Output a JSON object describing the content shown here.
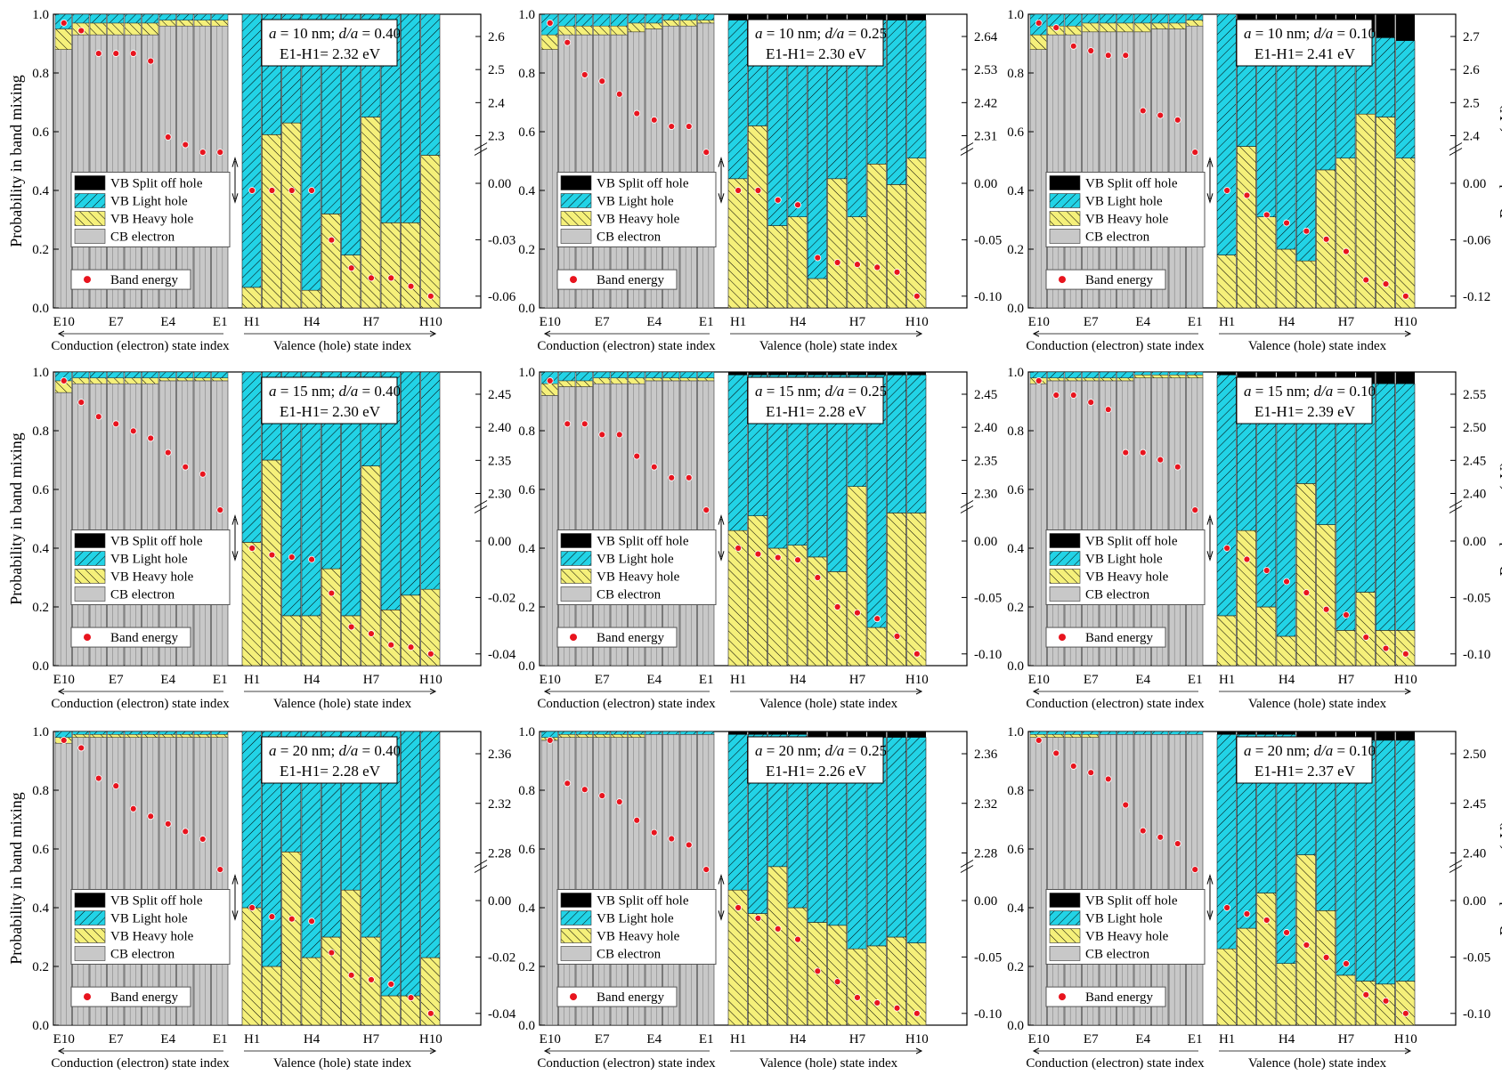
{
  "labels": {
    "ylabel_left": "Probability in band mixing",
    "ylabel_right": "Band energy (eV)",
    "xlabel_cb": "Conduction (electron) state index",
    "xlabel_vb": "Valence (hole) state index",
    "cb_ticks": [
      "E10",
      "E7",
      "E4",
      "E1"
    ],
    "vb_ticks": [
      "H1",
      "H4",
      "H7",
      "H10"
    ],
    "annot_a_prefix": "a",
    "annot_da_prefix": "d/a",
    "gap_prefix": "E1-H1= ",
    "legend": [
      "VB Split off hole",
      "VB Light hole",
      "VB Heavy hole",
      "CB electron",
      "Band energy"
    ]
  },
  "colors": {
    "split_off": "#000000",
    "light_hole": "#22d3e6",
    "heavy_hole": "#f5f07a",
    "cb_electron": "#c8c8c8",
    "band_energy_marker": "#e8141e"
  },
  "chart_data": [
    {
      "type": "bar",
      "row": 0,
      "col": 0,
      "a_text": " = 10 nm; ",
      "da_text": " = 0.40",
      "gap": "2.32 eV",
      "show_left_ylabel": true,
      "show_right_ylabel": false,
      "cb_prob": [
        0.88,
        0.93,
        0.93,
        0.93,
        0.93,
        0.93,
        0.96,
        0.96,
        0.96,
        0.96
      ],
      "cb_lh": [
        0.05,
        0.03,
        0.03,
        0.03,
        0.03,
        0.03,
        0.02,
        0.02,
        0.02,
        0.02
      ],
      "hh": [
        0.07,
        0.59,
        0.63,
        0.06,
        0.32,
        0.18,
        0.65,
        0.29,
        0.29,
        0.52
      ],
      "so": [
        0,
        0,
        0,
        0,
        0,
        0,
        0,
        0,
        0,
        0
      ],
      "right_ticks_top": [
        "2.3",
        "2.4",
        "2.5",
        "2.6"
      ],
      "right_ticks_bot": [
        "0.00",
        "-0.03",
        "-0.06"
      ],
      "cb_energy": [
        2.62,
        2.61,
        2.58,
        2.58,
        2.58,
        2.57,
        2.47,
        2.46,
        2.45,
        2.45
      ],
      "vb_energy": [
        0,
        0,
        0,
        0,
        -0.03,
        -0.047,
        -0.053,
        -0.053,
        -0.058,
        -0.064
      ]
    },
    {
      "type": "bar",
      "row": 0,
      "col": 1,
      "a_text": " = 10 nm; ",
      "da_text": " = 0.25",
      "gap": "2.30 eV",
      "show_left_ylabel": false,
      "show_right_ylabel": false,
      "cb_prob": [
        0.88,
        0.93,
        0.93,
        0.93,
        0.93,
        0.94,
        0.95,
        0.96,
        0.96,
        0.97
      ],
      "cb_lh": [
        0.07,
        0.04,
        0.04,
        0.04,
        0.04,
        0.03,
        0.03,
        0.02,
        0.02,
        0.02
      ],
      "hh": [
        0.44,
        0.62,
        0.28,
        0.31,
        0.1,
        0.44,
        0.31,
        0.49,
        0.42,
        0.51
      ],
      "so": [
        0.02,
        0.02,
        0.02,
        0.02,
        0.02,
        0.02,
        0.02,
        0.02,
        0.02,
        0.02
      ],
      "right_ticks_top": [
        "2.31",
        "2.42",
        "2.53",
        "2.64"
      ],
      "right_ticks_bot": [
        "0.00",
        "-0.05",
        "-0.10"
      ],
      "cb_energy": [
        2.66,
        2.63,
        2.58,
        2.57,
        2.55,
        2.52,
        2.51,
        2.5,
        2.5,
        2.46
      ],
      "vb_energy": [
        0,
        0,
        -0.01,
        -0.015,
        -0.07,
        -0.075,
        -0.077,
        -0.08,
        -0.085,
        -0.11
      ]
    },
    {
      "type": "bar",
      "row": 0,
      "col": 2,
      "a_text": " = 10 nm; ",
      "da_text": " = 0.10",
      "gap": "2.41 eV",
      "show_left_ylabel": false,
      "show_right_ylabel": true,
      "cb_prob": [
        0.88,
        0.93,
        0.93,
        0.94,
        0.94,
        0.94,
        0.94,
        0.95,
        0.95,
        0.96
      ],
      "cb_lh": [
        0.07,
        0.04,
        0.04,
        0.03,
        0.03,
        0.03,
        0.03,
        0.03,
        0.03,
        0.02
      ],
      "hh": [
        0.18,
        0.55,
        0.31,
        0.2,
        0.16,
        0.47,
        0.51,
        0.66,
        0.65,
        0.51
      ],
      "so": [
        0,
        0.02,
        0.02,
        0.02,
        0.03,
        0.03,
        0.05,
        0.06,
        0.08,
        0.09
      ],
      "right_ticks_top": [
        "2.4",
        "2.5",
        "2.6",
        "2.7"
      ],
      "right_ticks_bot": [
        "0.00",
        "-0.06",
        "-0.12"
      ],
      "cb_energy": [
        2.73,
        2.72,
        2.68,
        2.67,
        2.66,
        2.66,
        2.54,
        2.53,
        2.52,
        2.45
      ],
      "vb_energy": [
        0,
        -0.006,
        -0.03,
        -0.04,
        -0.05,
        -0.06,
        -0.075,
        -0.11,
        -0.115,
        -0.13
      ]
    },
    {
      "type": "bar",
      "row": 1,
      "col": 0,
      "a_text": " = 15 nm; ",
      "da_text": " = 0.40",
      "gap": "2.30 eV",
      "show_left_ylabel": true,
      "show_right_ylabel": false,
      "cb_prob": [
        0.93,
        0.96,
        0.96,
        0.96,
        0.96,
        0.96,
        0.97,
        0.97,
        0.97,
        0.97
      ],
      "cb_lh": [
        0.03,
        0.02,
        0.02,
        0.02,
        0.02,
        0.02,
        0.02,
        0.02,
        0.02,
        0.02
      ],
      "hh": [
        0.42,
        0.7,
        0.17,
        0.17,
        0.33,
        0.17,
        0.68,
        0.19,
        0.24,
        0.26
      ],
      "so": [
        0,
        0,
        0,
        0,
        0,
        0,
        0,
        0,
        0,
        0
      ],
      "right_ticks_top": [
        "2.30",
        "2.35",
        "2.40",
        "2.45"
      ],
      "right_ticks_bot": [
        "0.00",
        "-0.02",
        "-0.04"
      ],
      "cb_energy": [
        2.41,
        2.395,
        2.385,
        2.38,
        2.375,
        2.37,
        2.36,
        2.35,
        2.345,
        2.32
      ],
      "vb_energy": [
        0,
        -0.003,
        -0.004,
        -0.005,
        -0.02,
        -0.035,
        -0.038,
        -0.043,
        -0.044,
        -0.047
      ]
    },
    {
      "type": "bar",
      "row": 1,
      "col": 1,
      "a_text": " = 15 nm; ",
      "da_text": " = 0.25",
      "gap": "2.28 eV",
      "show_left_ylabel": false,
      "show_right_ylabel": false,
      "cb_prob": [
        0.92,
        0.95,
        0.95,
        0.96,
        0.96,
        0.96,
        0.97,
        0.97,
        0.97,
        0.97
      ],
      "cb_lh": [
        0.04,
        0.03,
        0.03,
        0.02,
        0.02,
        0.02,
        0.02,
        0.02,
        0.02,
        0.02
      ],
      "hh": [
        0.46,
        0.51,
        0.4,
        0.41,
        0.37,
        0.32,
        0.61,
        0.13,
        0.52,
        0.52
      ],
      "so": [
        0.01,
        0.01,
        0.01,
        0.01,
        0.01,
        0.01,
        0.01,
        0.01,
        0.01,
        0.01
      ],
      "right_ticks_top": [
        "2.30",
        "2.35",
        "2.40",
        "2.45"
      ],
      "right_ticks_bot": [
        "0.00",
        "-0.05",
        "-0.10"
      ],
      "cb_energy": [
        2.42,
        2.38,
        2.38,
        2.37,
        2.37,
        2.35,
        2.34,
        2.33,
        2.33,
        2.3
      ],
      "vb_energy": [
        0,
        -0.005,
        -0.008,
        -0.01,
        -0.025,
        -0.05,
        -0.055,
        -0.06,
        -0.075,
        -0.09
      ]
    },
    {
      "type": "bar",
      "row": 1,
      "col": 2,
      "a_text": " = 15 nm; ",
      "da_text": " = 0.10",
      "gap": "2.39 eV",
      "show_left_ylabel": false,
      "show_right_ylabel": true,
      "cb_prob": [
        0.96,
        0.97,
        0.97,
        0.97,
        0.97,
        0.97,
        0.98,
        0.98,
        0.98,
        0.98
      ],
      "cb_lh": [
        0.02,
        0.02,
        0.02,
        0.02,
        0.02,
        0.02,
        0.01,
        0.01,
        0.01,
        0.01
      ],
      "hh": [
        0.17,
        0.46,
        0.2,
        0.1,
        0.62,
        0.48,
        0.12,
        0.25,
        0.12,
        0.12
      ],
      "so": [
        0.01,
        0.02,
        0.02,
        0.02,
        0.02,
        0.03,
        0.03,
        0.04,
        0.04,
        0.04
      ],
      "right_ticks_top": [
        "2.40",
        "2.45",
        "2.50",
        "2.55"
      ],
      "right_ticks_bot": [
        "0.00",
        "-0.05",
        "-0.10"
      ],
      "cb_energy": [
        2.55,
        2.54,
        2.54,
        2.535,
        2.53,
        2.5,
        2.5,
        2.495,
        2.49,
        2.46
      ],
      "vb_energy": [
        0,
        -0.01,
        -0.02,
        -0.03,
        -0.04,
        -0.055,
        -0.06,
        -0.08,
        -0.09,
        -0.095
      ]
    },
    {
      "type": "bar",
      "row": 2,
      "col": 0,
      "a_text": " = 20 nm; ",
      "da_text": " = 0.40",
      "gap": "2.28 eV",
      "show_left_ylabel": true,
      "show_right_ylabel": false,
      "cb_prob": [
        0.96,
        0.98,
        0.98,
        0.98,
        0.98,
        0.98,
        0.98,
        0.98,
        0.98,
        0.98
      ],
      "cb_lh": [
        0.02,
        0.01,
        0.01,
        0.01,
        0.01,
        0.01,
        0.01,
        0.01,
        0.01,
        0.01
      ],
      "hh": [
        0.4,
        0.2,
        0.59,
        0.23,
        0.3,
        0.46,
        0.3,
        0.1,
        0.1,
        0.23
      ],
      "so": [
        0,
        0,
        0,
        0,
        0,
        0,
        0,
        0,
        0,
        0
      ],
      "right_ticks_top": [
        "2.28",
        "2.32",
        "2.36"
      ],
      "right_ticks_bot": [
        "0.00",
        "-0.02",
        "-0.04"
      ],
      "cb_energy": [
        2.365,
        2.36,
        2.34,
        2.335,
        2.32,
        2.315,
        2.31,
        2.305,
        2.3,
        2.28
      ],
      "vb_energy": [
        0,
        -0.004,
        -0.005,
        -0.006,
        -0.02,
        -0.03,
        -0.032,
        -0.034,
        -0.04,
        -0.047
      ]
    },
    {
      "type": "bar",
      "row": 2,
      "col": 1,
      "a_text": " = 20 nm; ",
      "da_text": " = 0.25",
      "gap": "2.26 eV",
      "show_left_ylabel": false,
      "show_right_ylabel": false,
      "cb_prob": [
        0.97,
        0.98,
        0.98,
        0.98,
        0.98,
        0.98,
        0.99,
        0.99,
        0.99,
        0.99
      ],
      "cb_lh": [
        0.02,
        0.01,
        0.01,
        0.01,
        0.01,
        0.01,
        0.01,
        0.01,
        0.01,
        0.01
      ],
      "hh": [
        0.46,
        0.38,
        0.54,
        0.4,
        0.35,
        0.34,
        0.26,
        0.27,
        0.3,
        0.28
      ],
      "so": [
        0.01,
        0.01,
        0.01,
        0.01,
        0.02,
        0.02,
        0.02,
        0.02,
        0.02,
        0.02
      ],
      "right_ticks_top": [
        "2.28",
        "2.32",
        "2.36"
      ],
      "right_ticks_bot": [
        "0.00",
        "-0.05",
        "-0.10"
      ],
      "cb_energy": [
        2.375,
        2.34,
        2.335,
        2.33,
        2.325,
        2.31,
        2.3,
        2.295,
        2.29,
        2.27
      ],
      "vb_energy": [
        0,
        -0.01,
        -0.02,
        -0.03,
        -0.06,
        -0.07,
        -0.085,
        -0.09,
        -0.095,
        -0.1
      ]
    },
    {
      "type": "bar",
      "row": 2,
      "col": 2,
      "a_text": " = 20 nm; ",
      "da_text": " = 0.10",
      "gap": "2.37 eV",
      "show_left_ylabel": false,
      "show_right_ylabel": true,
      "cb_prob": [
        0.98,
        0.98,
        0.98,
        0.98,
        0.99,
        0.99,
        0.99,
        0.99,
        0.99,
        0.99
      ],
      "cb_lh": [
        0.01,
        0.01,
        0.01,
        0.01,
        0.01,
        0.01,
        0.01,
        0.01,
        0.01,
        0.01
      ],
      "hh": [
        0.26,
        0.33,
        0.45,
        0.21,
        0.58,
        0.39,
        0.17,
        0.15,
        0.14,
        0.15
      ],
      "so": [
        0.01,
        0.01,
        0.01,
        0.01,
        0.02,
        0.02,
        0.02,
        0.03,
        0.03,
        0.03
      ],
      "right_ticks_top": [
        "2.40",
        "2.45",
        "2.50"
      ],
      "right_ticks_bot": [
        "0.00",
        "-0.05",
        "-0.10"
      ],
      "cb_energy": [
        2.49,
        2.48,
        2.47,
        2.465,
        2.46,
        2.44,
        2.42,
        2.415,
        2.41,
        2.39
      ],
      "vb_energy": [
        0,
        -0.005,
        -0.01,
        -0.02,
        -0.03,
        -0.04,
        -0.045,
        -0.07,
        -0.075,
        -0.085
      ]
    }
  ]
}
